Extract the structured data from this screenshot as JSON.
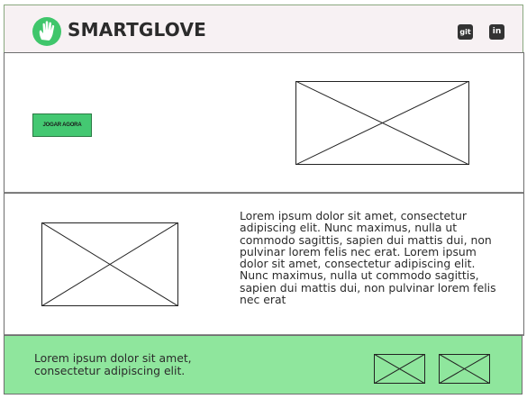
{
  "header": {
    "brand": "SMARTGLOVE",
    "icons": {
      "git_label": "git",
      "linkedin_label": "in",
      "logo": "hand-logo-icon"
    }
  },
  "hero": {
    "play_button_label": "JOGAR AGORA",
    "image_placeholder": "image-placeholder"
  },
  "about": {
    "text": "Lorem ipsum dolor sit amet, consectetur adipiscing elit. Nunc maximus, nulla ut commodo sagittis, sapien dui mattis dui, non pulvinar lorem felis nec erat. Lorem ipsum dolor sit amet, consectetur adipiscing elit. Nunc maximus, nulla ut commodo sagittis, sapien dui mattis dui, non pulvinar lorem felis nec erat"
  },
  "footer": {
    "text": "Lorem ipsum dolor sit amet, consectetur adipiscing elit."
  },
  "colors": {
    "header_bg": "#f7f1f3",
    "accent_green": "#44c872",
    "footer_bg": "#8fe69d",
    "logo_green": "#3fc66b"
  }
}
